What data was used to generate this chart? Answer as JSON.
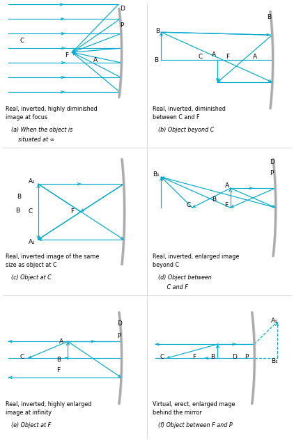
{
  "bg": "#ffffff",
  "mc": "#aaaaaa",
  "rc": "#00aacc",
  "lw_ray": 0.85,
  "lw_mirror": 2.2,
  "fs_lbl": 6.5,
  "fs_cap_bold": 5.8,
  "fs_cap_italic": 5.8,
  "captions_bold": [
    "Real, inverted, highly diminished\nimage at focus",
    "Real, inverted, diminished\nbetween C and F",
    "Real, inverted image of the same\nsize as object at C",
    "Real, inverted, enlarged image\nbeyond C",
    "Real, inverted, highly enlarged\nimage at infinity",
    "Virtual, erect, enlarged mage\nbehind the mirror"
  ],
  "captions_italic": [
    [
      "(a) When the object is",
      "    situated at ∞"
    ],
    [
      "(b) Object beyond C"
    ],
    [
      "(c) Object at C"
    ],
    [
      "(d) Object between",
      "     C and F"
    ],
    [
      "(e) Object at F"
    ],
    [
      "(f) Object between F and P"
    ]
  ]
}
